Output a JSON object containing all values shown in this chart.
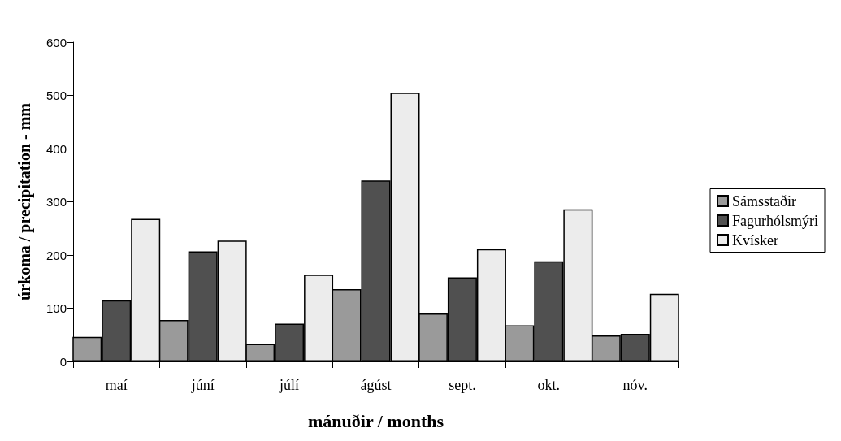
{
  "chart_data": {
    "type": "bar",
    "xlabel": "mánuðir / months",
    "ylabel": "úrkoma / precipitation - mm",
    "categories": [
      "maí",
      "júní",
      "júlí",
      "ágúst",
      "sept.",
      "okt.",
      "nóv."
    ],
    "series": [
      {
        "name": "Sámsstaðir",
        "color": "#9a9a9a",
        "values": [
          46,
          78,
          33,
          136,
          90,
          68,
          49
        ]
      },
      {
        "name": "Fagurhólsmýri",
        "color": "#505050",
        "values": [
          115,
          207,
          71,
          340,
          158,
          188,
          52
        ]
      },
      {
        "name": "Kvísker",
        "color": "#ececec",
        "values": [
          268,
          227,
          163,
          505,
          211,
          286,
          127
        ]
      }
    ],
    "ylim": [
      0,
      600
    ],
    "yticks": [
      0,
      100,
      200,
      300,
      400,
      500,
      600
    ],
    "grid": false,
    "legend": "right"
  }
}
